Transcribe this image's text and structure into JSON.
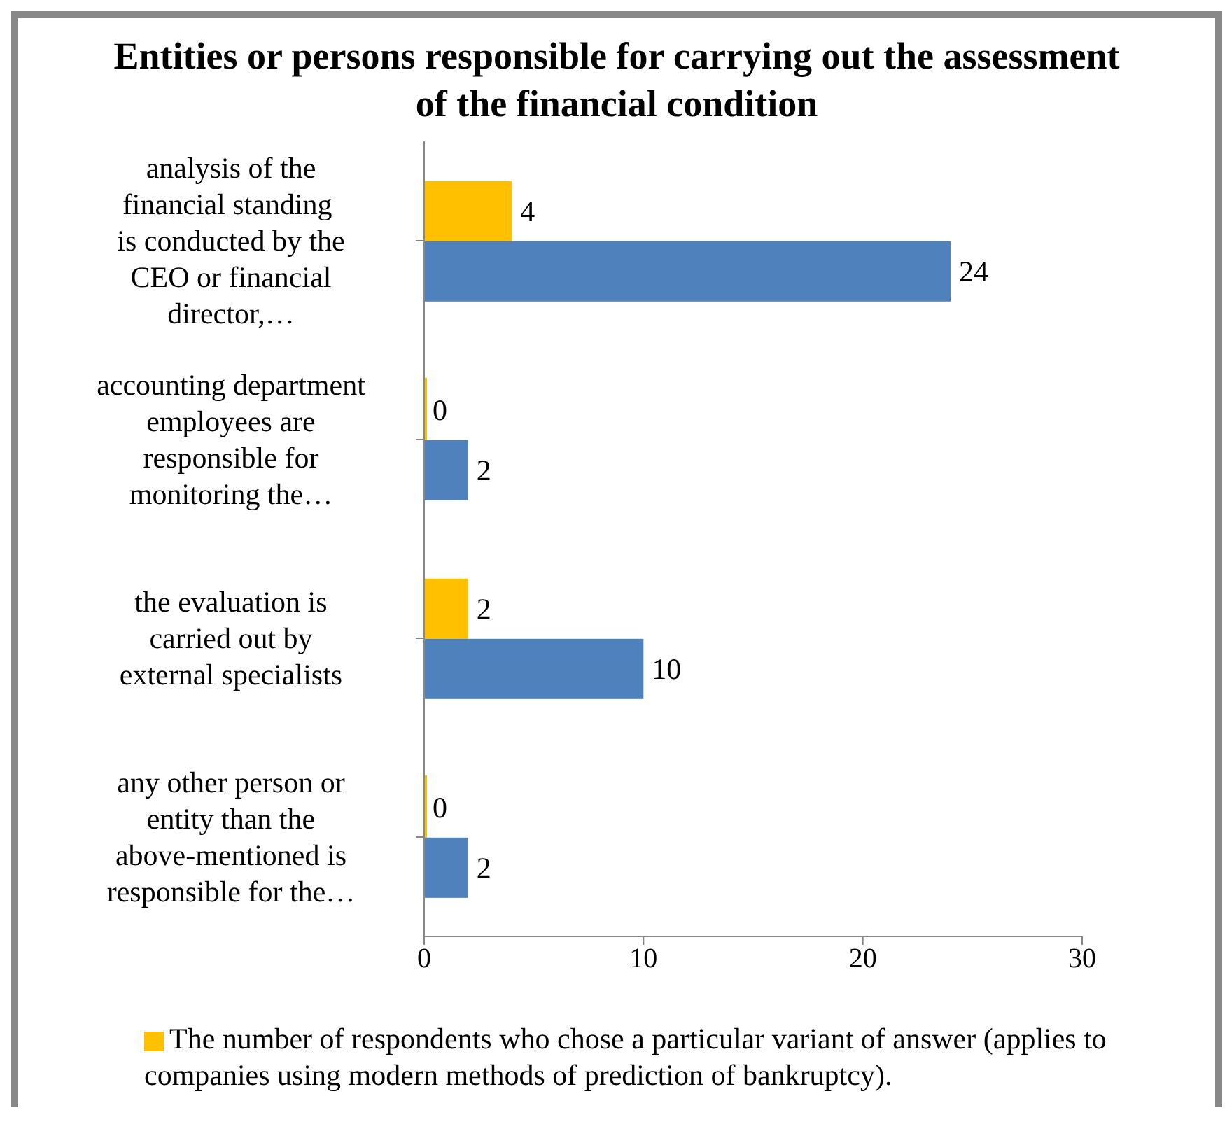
{
  "chart_data": {
    "type": "bar",
    "orientation": "horizontal",
    "title": "Entities or persons responsible for carrying out the assessment of the financial condition",
    "categories": [
      "analysis of the financial standing  is conducted by the CEO or financial director,…",
      "accounting department employees are responsible for monitoring the…",
      "the evaluation is carried out by external specialists",
      "any other person or entity than the above-mentioned is responsible for the…"
    ],
    "series": [
      {
        "name": "The number of respondents who chose a particular variant of answer (applies to companies using modern methods of prediction of bankruptcy).",
        "color": "#ffc000",
        "values": [
          4,
          0,
          2,
          0
        ]
      },
      {
        "color": "#4f81bd",
        "values": [
          24,
          2,
          10,
          2
        ]
      }
    ],
    "xlim": [
      0,
      30
    ],
    "xticks": [
      0,
      10,
      20,
      30
    ],
    "data_labels": true,
    "legend": "bottom"
  }
}
